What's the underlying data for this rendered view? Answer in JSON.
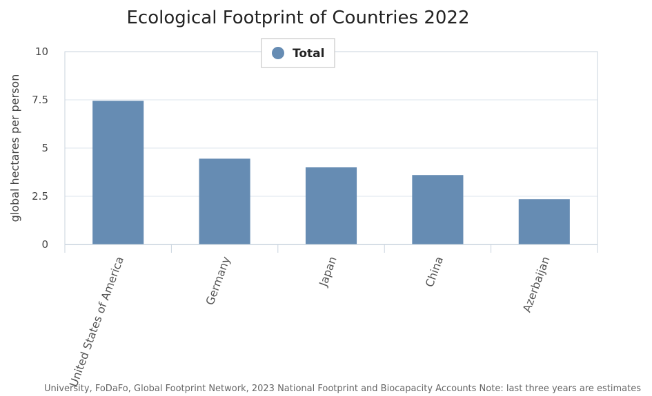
{
  "chart_data": {
    "type": "bar",
    "title": "Ecological Footprint of Countries 2022",
    "xlabel": "",
    "ylabel": "global hectares per person",
    "categories": [
      "United States of America",
      "Germany",
      "Japan",
      "China",
      "Azerbaijan"
    ],
    "series": [
      {
        "name": "Total",
        "values": [
          7.45,
          4.45,
          4.0,
          3.6,
          2.35
        ],
        "color": "#668cb3"
      }
    ],
    "ylim": [
      0,
      10
    ],
    "yticks": [
      "0",
      "2.5",
      "5",
      "7.5",
      "10"
    ],
    "ytick_values": [
      0,
      2.5,
      5,
      7.5,
      10
    ],
    "grid": true,
    "legend_position": "top-center",
    "source_note": "University, FoDaFo, Global Footprint Network, 2023 National Footprint and Biocapacity Accounts Note: last three years are estimates"
  },
  "colors": {
    "bar": "#668cb3",
    "grid": "#dde4ec",
    "axis": "#c9d3de"
  }
}
